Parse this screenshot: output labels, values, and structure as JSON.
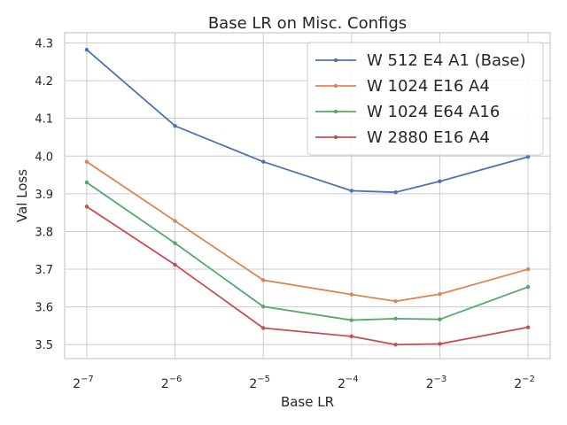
{
  "chart_data": {
    "type": "line",
    "title": "Base LR on Misc. Configs",
    "xlabel": "Base LR",
    "ylabel": "Val Loss",
    "x_scale": "log2",
    "x": [
      -7,
      -6,
      -5,
      -4,
      -3.5,
      -3,
      -2
    ],
    "xticks": [
      {
        "exp": -7,
        "base": "2",
        "sup": "−7"
      },
      {
        "exp": -6,
        "base": "2",
        "sup": "−6"
      },
      {
        "exp": -5,
        "base": "2",
        "sup": "−5"
      },
      {
        "exp": -4,
        "base": "2",
        "sup": "−4"
      },
      {
        "exp": -3,
        "base": "2",
        "sup": "−3"
      },
      {
        "exp": -2,
        "base": "2",
        "sup": "−2"
      }
    ],
    "xlim": [
      -7.25,
      -1.75
    ],
    "ylim": [
      3.463,
      4.327
    ],
    "yticks": [
      3.5,
      3.6,
      3.7,
      3.8,
      3.9,
      4.0,
      4.1,
      4.2,
      4.3
    ],
    "ytick_labels": [
      "3.5",
      "3.6",
      "3.7",
      "3.8",
      "3.9",
      "4.0",
      "4.1",
      "4.2",
      "4.3"
    ],
    "grid": true,
    "legend_position": "top-right",
    "series": [
      {
        "name": "W 512 E4 A1 (Base)",
        "color": "#4c72b0",
        "values": [
          4.282,
          4.08,
          3.985,
          3.908,
          3.904,
          3.933,
          3.998
        ]
      },
      {
        "name": "W 1024 E16 A4",
        "color": "#dd8452",
        "values": [
          3.985,
          3.828,
          3.671,
          3.633,
          3.615,
          3.634,
          3.7
        ]
      },
      {
        "name": "W 1024 E64 A16",
        "color": "#55a868",
        "values": [
          3.93,
          3.769,
          3.601,
          3.565,
          3.569,
          3.567,
          3.653
        ]
      },
      {
        "name": "W 2880 E16 A4",
        "color": "#c44e52",
        "values": [
          3.866,
          3.712,
          3.544,
          3.522,
          3.5,
          3.502,
          3.546
        ]
      }
    ]
  }
}
